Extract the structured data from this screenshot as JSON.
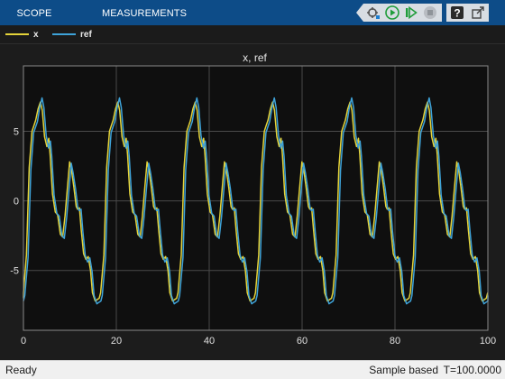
{
  "toolstrip": {
    "tabs": [
      {
        "label": "SCOPE"
      },
      {
        "label": "MEASUREMENTS"
      }
    ],
    "colors": {
      "background": "#0d4c88",
      "text": "#ffffff"
    },
    "quick_access": [
      {
        "icon": "signal-tap-icon"
      },
      {
        "icon": "run-icon",
        "color": "#1f9d3a"
      },
      {
        "icon": "step-forward-icon",
        "color": "#1f9d3a"
      },
      {
        "icon": "stop-icon"
      },
      {
        "icon": "help-icon"
      },
      {
        "icon": "expand-icon"
      }
    ]
  },
  "legend": {
    "items": [
      {
        "label": "x",
        "color": "#e4d33a"
      },
      {
        "label": "ref",
        "color": "#3ea3d9"
      }
    ]
  },
  "plot": {
    "title": "x, ref",
    "background": "#0f0f0f",
    "grid": true
  },
  "chart_data": {
    "type": "line",
    "title": "x, ref",
    "xlabel": "",
    "ylabel": "",
    "xlim": [
      0,
      100
    ],
    "ylim": [
      -9.3,
      9.7
    ],
    "x_ticks": [
      0,
      20,
      40,
      60,
      80,
      100
    ],
    "y_ticks": [
      5,
      0,
      -5
    ],
    "legend_placement": "top-left",
    "period": 16.67,
    "series": [
      {
        "name": "ref",
        "color": "#3ea3d9",
        "cycle_x": [
          0,
          0.3,
          1.0,
          1.6,
          2.2,
          2.6,
          3.0,
          3.5,
          4.0,
          4.4,
          4.9,
          5.4,
          5.8,
          6.1,
          6.6,
          7.2,
          7.7,
          8.3,
          8.8,
          9.3,
          9.8,
          10.3,
          10.7,
          11.2,
          11.7,
          12.0,
          12.4,
          12.8,
          13.3,
          13.8,
          14.3,
          14.8,
          15.2,
          15.8,
          16.2,
          16.67
        ],
        "cycle_y": [
          -7.2,
          -6.8,
          -4.1,
          2.2,
          4.9,
          5.3,
          5.7,
          6.7,
          7.4,
          6.7,
          4.7,
          3.8,
          4.3,
          3.2,
          0.4,
          -0.9,
          -1.1,
          -2.5,
          -2.7,
          -1.2,
          0.8,
          2.7,
          2.0,
          0.9,
          -0.5,
          -0.7,
          -0.6,
          -2.2,
          -3.9,
          -4.4,
          -4.1,
          -5.1,
          -6.8,
          -7.4,
          -7.3,
          -7.2
        ]
      },
      {
        "name": "x",
        "color": "#e4d33a",
        "phase_lead": 0.35,
        "cycle_x": [
          0,
          0.3,
          1.0,
          1.6,
          2.2,
          2.6,
          3.0,
          3.5,
          4.0,
          4.4,
          4.9,
          5.4,
          5.8,
          6.1,
          6.6,
          7.2,
          7.7,
          8.3,
          8.8,
          9.3,
          9.8,
          10.3,
          10.7,
          11.2,
          11.7,
          12.0,
          12.4,
          12.8,
          13.3,
          13.8,
          14.3,
          14.8,
          15.2,
          15.8,
          16.2,
          16.67
        ],
        "cycle_y": [
          -7.0,
          -6.6,
          -3.9,
          2.4,
          5.0,
          5.4,
          5.8,
          6.6,
          7.1,
          6.5,
          4.6,
          3.9,
          4.5,
          3.3,
          0.5,
          -0.8,
          -1.0,
          -2.4,
          -2.6,
          -1.1,
          0.9,
          2.8,
          2.2,
          1.0,
          -0.4,
          -0.6,
          -0.5,
          -2.1,
          -3.8,
          -4.2,
          -4.0,
          -5.0,
          -6.6,
          -7.2,
          -7.1,
          -7.0
        ]
      }
    ]
  },
  "status": {
    "left": "Ready",
    "mode": "Sample based",
    "time": "T=100.0000"
  }
}
